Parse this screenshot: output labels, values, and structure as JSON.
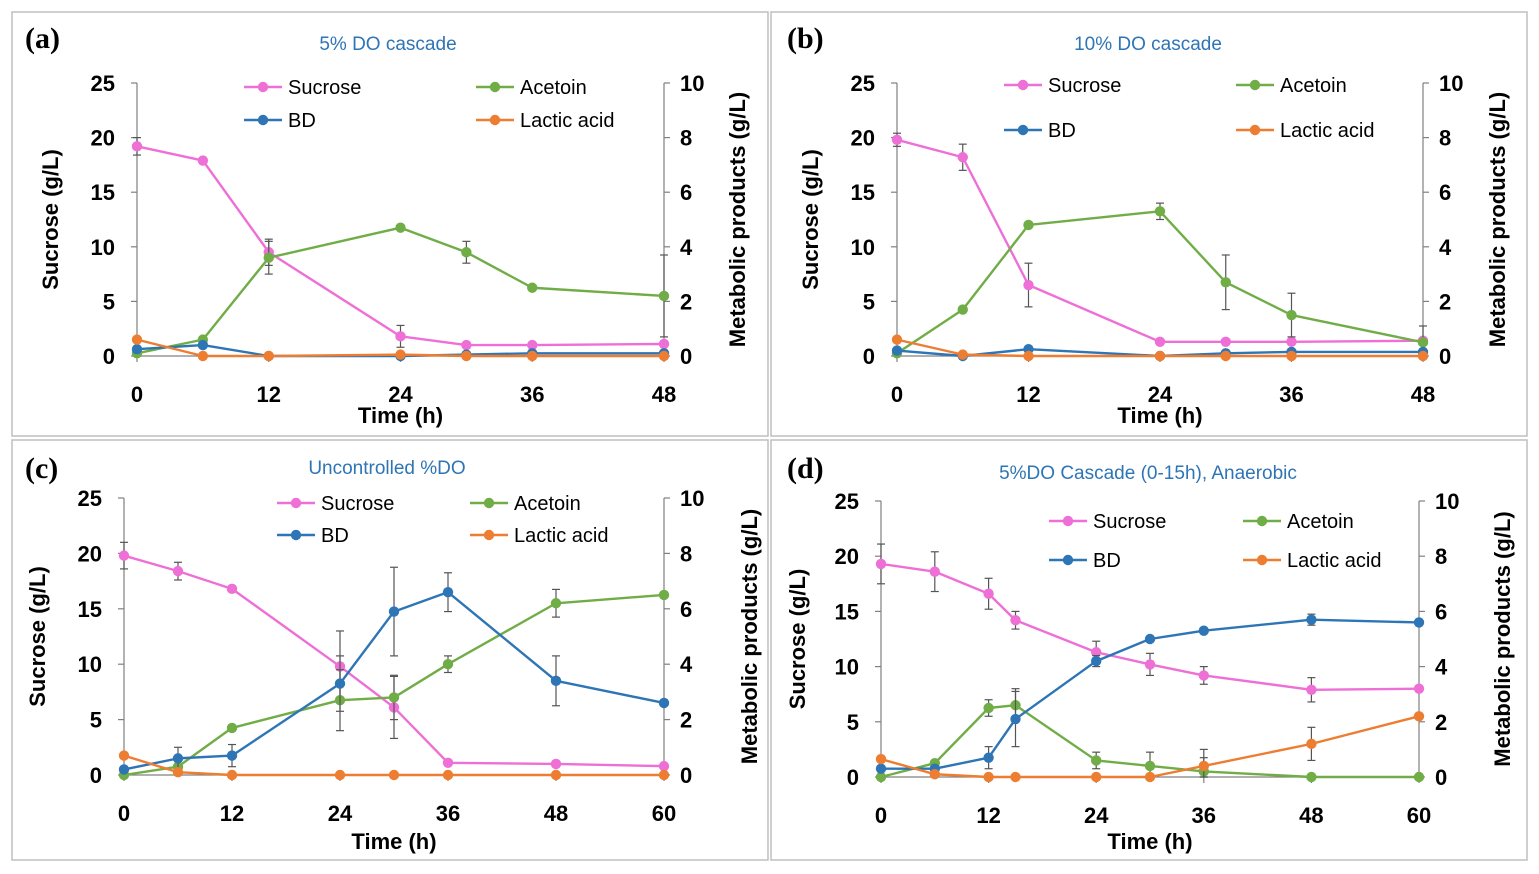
{
  "figure": {
    "colors": {
      "sucrose": "#ee6fd6",
      "acetoin": "#70ad47",
      "bd": "#2e75b6",
      "lactic": "#ed7d31",
      "title": "#2e75b6",
      "frame": "#bfbfbf",
      "axis": "#808080",
      "errorbar": "#555555"
    }
  },
  "chart_data": [
    {
      "type": "line",
      "panel": "(a)",
      "title": "5% DO cascade",
      "xlabel": "Time (h)",
      "ylabel": "Sucrose (g/L)",
      "y2label": "Metabolic products (g/L)",
      "xticks": [
        "0",
        "12",
        "24",
        "36",
        "48"
      ],
      "yticks": [
        "0",
        "5",
        "10",
        "15",
        "20",
        "25"
      ],
      "y2ticks": [
        "0",
        "2",
        "4",
        "6",
        "8",
        "10"
      ],
      "xlim": [
        0,
        48
      ],
      "ylim": [
        0,
        25
      ],
      "y2lim": [
        0,
        10
      ],
      "series": [
        {
          "name": "Sucrose",
          "axis": "left",
          "color": "#ee6fd6",
          "x": [
            0,
            6,
            12,
            24,
            30,
            36,
            48
          ],
          "y": [
            19.2,
            17.9,
            9.5,
            1.8,
            1.0,
            1.0,
            1.1
          ],
          "err": [
            0.8,
            0,
            1.2,
            1.0,
            0,
            0,
            0
          ]
        },
        {
          "name": "Acetoin",
          "axis": "right",
          "color": "#70ad47",
          "x": [
            0,
            6,
            12,
            24,
            30,
            36,
            48
          ],
          "y": [
            0.1,
            0.6,
            3.6,
            4.7,
            3.8,
            2.5,
            2.2
          ],
          "err": [
            0,
            0,
            0.6,
            0,
            0.4,
            0,
            1.5
          ]
        },
        {
          "name": "BD",
          "axis": "right",
          "color": "#2e75b6",
          "x": [
            0,
            6,
            12,
            24,
            30,
            36,
            48
          ],
          "y": [
            0.25,
            0.4,
            0.0,
            0.0,
            0.05,
            0.1,
            0.1
          ],
          "err": [
            0,
            0,
            0,
            0,
            0,
            0,
            0
          ]
        },
        {
          "name": "Lactic acid",
          "axis": "right",
          "color": "#ed7d31",
          "x": [
            0,
            6,
            12,
            24,
            30,
            36,
            48
          ],
          "y": [
            0.6,
            0.0,
            0.0,
            0.05,
            0.0,
            0.0,
            0.0
          ],
          "err": [
            0,
            0,
            0,
            0,
            0,
            0,
            0
          ]
        }
      ]
    },
    {
      "type": "line",
      "panel": "(b)",
      "title": "10% DO cascade",
      "xlabel": "Time (h)",
      "ylabel": "Sucrose (g/L)",
      "y2label": "Metabolic products (g/L)",
      "xticks": [
        "0",
        "12",
        "24",
        "36",
        "48"
      ],
      "yticks": [
        "0",
        "5",
        "10",
        "15",
        "20",
        "25"
      ],
      "y2ticks": [
        "0",
        "2",
        "4",
        "6",
        "8",
        "10"
      ],
      "xlim": [
        0,
        48
      ],
      "ylim": [
        0,
        25
      ],
      "y2lim": [
        0,
        10
      ],
      "series": [
        {
          "name": "Sucrose",
          "axis": "left",
          "color": "#ee6fd6",
          "x": [
            0,
            6,
            12,
            24,
            30,
            36,
            48
          ],
          "y": [
            19.8,
            18.2,
            6.5,
            1.3,
            1.3,
            1.3,
            1.4
          ],
          "err": [
            0.6,
            1.2,
            2.0,
            0,
            0,
            0,
            0
          ]
        },
        {
          "name": "Acetoin",
          "axis": "right",
          "color": "#70ad47",
          "x": [
            0,
            6,
            12,
            24,
            30,
            36,
            48
          ],
          "y": [
            0.1,
            1.7,
            4.8,
            5.3,
            2.7,
            1.5,
            0.5
          ],
          "err": [
            0,
            0,
            0.1,
            0.3,
            1.0,
            0.8,
            0.6
          ]
        },
        {
          "name": "BD",
          "axis": "right",
          "color": "#2e75b6",
          "x": [
            0,
            6,
            12,
            24,
            30,
            36,
            48
          ],
          "y": [
            0.2,
            0.0,
            0.25,
            0.0,
            0.1,
            0.15,
            0.15
          ],
          "err": [
            0,
            0,
            0,
            0,
            0,
            0,
            0
          ]
        },
        {
          "name": "Lactic acid",
          "axis": "right",
          "color": "#ed7d31",
          "x": [
            0,
            6,
            12,
            24,
            30,
            36,
            48
          ],
          "y": [
            0.6,
            0.05,
            0.0,
            0.0,
            0.0,
            0.0,
            0.0
          ],
          "err": [
            0,
            0,
            0,
            0,
            0,
            0,
            0
          ]
        }
      ]
    },
    {
      "type": "line",
      "panel": "(c)",
      "title": "Uncontrolled %DO",
      "xlabel": "Time (h)",
      "ylabel": "Sucrose (g/L)",
      "y2label": "Metabolic products (g/L)",
      "xticks": [
        "0",
        "12",
        "24",
        "36",
        "48",
        "60"
      ],
      "yticks": [
        "0",
        "5",
        "10",
        "15",
        "20",
        "25"
      ],
      "y2ticks": [
        "0",
        "2",
        "4",
        "6",
        "8",
        "10"
      ],
      "xlim": [
        0,
        60
      ],
      "ylim": [
        0,
        25
      ],
      "y2lim": [
        0,
        10
      ],
      "series": [
        {
          "name": "Sucrose",
          "axis": "left",
          "color": "#ee6fd6",
          "x": [
            0,
            6,
            12,
            24,
            30,
            36,
            48,
            60
          ],
          "y": [
            19.8,
            18.4,
            16.8,
            9.8,
            6.1,
            1.1,
            1.0,
            0.8
          ],
          "err": [
            1.2,
            0.8,
            0,
            3.2,
            2.8,
            0,
            0,
            0
          ]
        },
        {
          "name": "Acetoin",
          "axis": "right",
          "color": "#70ad47",
          "x": [
            0,
            6,
            12,
            24,
            30,
            36,
            48,
            60
          ],
          "y": [
            0.0,
            0.3,
            1.7,
            2.7,
            2.8,
            4.0,
            6.2,
            6.5
          ],
          "err": [
            0,
            0,
            0,
            1.1,
            0.8,
            0.3,
            0.5,
            0
          ]
        },
        {
          "name": "BD",
          "axis": "right",
          "color": "#2e75b6",
          "x": [
            0,
            6,
            12,
            24,
            30,
            36,
            48,
            60
          ],
          "y": [
            0.2,
            0.6,
            0.7,
            3.3,
            5.9,
            6.6,
            3.4,
            2.6
          ],
          "err": [
            0,
            0.4,
            0.4,
            1.0,
            1.6,
            0.7,
            0.9,
            0
          ]
        },
        {
          "name": "Lactic acid",
          "axis": "right",
          "color": "#ed7d31",
          "x": [
            0,
            6,
            12,
            24,
            30,
            36,
            48,
            60
          ],
          "y": [
            0.7,
            0.1,
            0.0,
            0.0,
            0.0,
            0.0,
            0.0,
            0.0
          ],
          "err": [
            0,
            0,
            0,
            0,
            0,
            0,
            0,
            0
          ]
        }
      ]
    },
    {
      "type": "line",
      "panel": "(d)",
      "title": "5%DO Cascade (0-15h), Anaerobic",
      "xlabel": "Time (h)",
      "ylabel": "Sucrose (g/L)",
      "y2label": "Metabolic products (g/L)",
      "xticks": [
        "0",
        "12",
        "24",
        "36",
        "48",
        "60"
      ],
      "yticks": [
        "0",
        "5",
        "10",
        "15",
        "20",
        "25"
      ],
      "y2ticks": [
        "0",
        "2",
        "4",
        "6",
        "8",
        "10"
      ],
      "xlim": [
        0,
        60
      ],
      "ylim": [
        0,
        25
      ],
      "y2lim": [
        0,
        10
      ],
      "series": [
        {
          "name": "Sucrose",
          "axis": "left",
          "color": "#ee6fd6",
          "x": [
            0,
            6,
            12,
            15,
            24,
            30,
            36,
            48,
            60
          ],
          "y": [
            19.3,
            18.6,
            16.6,
            14.2,
            11.3,
            10.2,
            9.2,
            7.9,
            8.0
          ],
          "err": [
            1.8,
            1.8,
            1.4,
            0.8,
            1.0,
            1.0,
            0.8,
            1.1,
            0
          ]
        },
        {
          "name": "Acetoin",
          "axis": "right",
          "color": "#70ad47",
          "x": [
            0,
            6,
            12,
            15,
            24,
            30,
            36,
            48,
            60
          ],
          "y": [
            0.0,
            0.5,
            2.5,
            2.6,
            0.6,
            0.4,
            0.2,
            0.0,
            0.0
          ],
          "err": [
            0,
            0,
            0.3,
            0.6,
            0.3,
            0.5,
            0.5,
            0,
            0
          ]
        },
        {
          "name": "BD",
          "axis": "right",
          "color": "#2e75b6",
          "x": [
            0,
            6,
            12,
            15,
            24,
            30,
            36,
            48,
            60
          ],
          "y": [
            0.3,
            0.3,
            0.7,
            2.1,
            4.2,
            5.0,
            5.3,
            5.7,
            5.6
          ],
          "err": [
            0,
            0,
            0.4,
            1.0,
            0.2,
            0,
            0,
            0.2,
            0
          ]
        },
        {
          "name": "Lactic acid",
          "axis": "right",
          "color": "#ed7d31",
          "x": [
            0,
            6,
            12,
            15,
            24,
            30,
            36,
            48,
            60
          ],
          "y": [
            0.65,
            0.1,
            0.0,
            0.0,
            0.0,
            0.0,
            0.4,
            1.2,
            2.2
          ],
          "err": [
            0,
            0,
            0,
            0,
            0,
            0,
            0.6,
            0.6,
            0
          ]
        }
      ]
    }
  ]
}
